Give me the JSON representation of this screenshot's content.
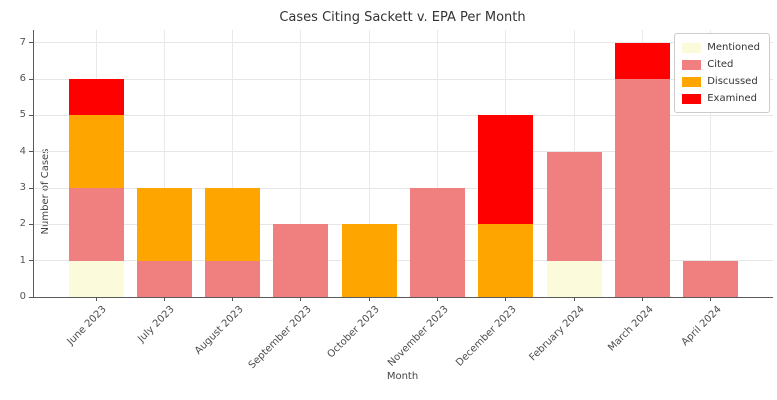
{
  "chart_data": {
    "type": "bar",
    "stacked": true,
    "title": "Cases Citing Sackett v. EPA Per Month",
    "xlabel": "Month",
    "ylabel": "Number of Cases",
    "categories": [
      "June 2023",
      "July 2023",
      "August 2023",
      "September 2023",
      "October 2023",
      "November 2023",
      "December 2023",
      "February 2024",
      "March 2024",
      "April 2024"
    ],
    "series": [
      {
        "name": "Mentioned",
        "color": "#FBFBDC",
        "values": [
          1,
          0,
          0,
          0,
          0,
          0,
          0,
          1,
          0,
          0
        ]
      },
      {
        "name": "Cited",
        "color": "#F08080",
        "values": [
          2,
          1,
          1,
          2,
          0,
          3,
          0,
          3,
          6,
          1
        ]
      },
      {
        "name": "Discussed",
        "color": "#FFA500",
        "values": [
          2,
          2,
          2,
          0,
          2,
          0,
          2,
          0,
          0,
          0
        ]
      },
      {
        "name": "Examined",
        "color": "#FF0000",
        "values": [
          1,
          0,
          0,
          0,
          0,
          0,
          3,
          0,
          1,
          0
        ]
      }
    ],
    "totals": [
      6,
      3,
      3,
      2,
      2,
      3,
      5,
      4,
      7,
      1
    ],
    "yticks": [
      0,
      1,
      2,
      3,
      4,
      5,
      6,
      7
    ],
    "ylim": [
      0,
      7.35
    ],
    "grid": true,
    "legend_position": "upper right",
    "legend_entries": [
      "Mentioned",
      "Cited",
      "Discussed",
      "Examined"
    ]
  }
}
